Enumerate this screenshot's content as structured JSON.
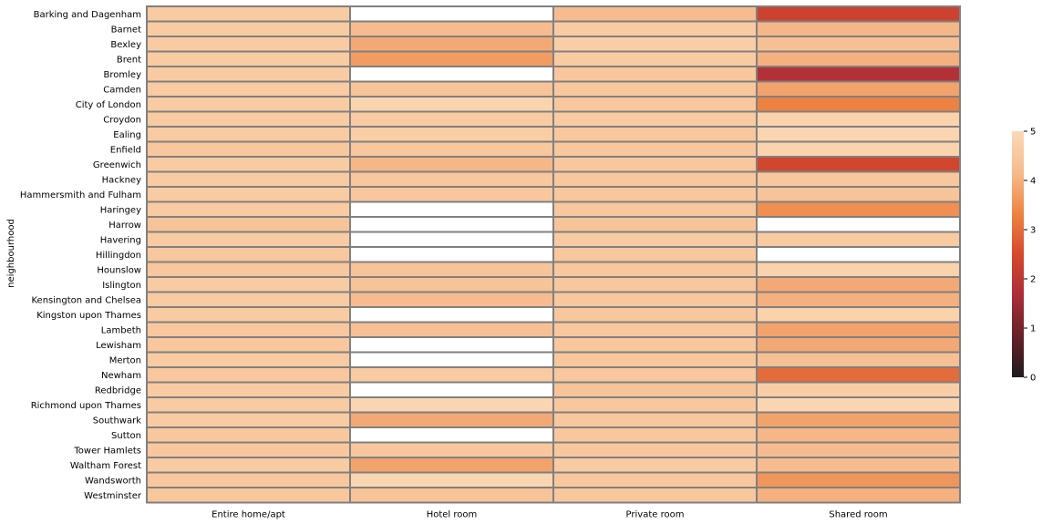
{
  "chart_data": {
    "type": "heatmap",
    "title": "",
    "xlabel": "",
    "ylabel": "neighbourhood",
    "columns": [
      "Entire home/apt",
      "Hotel room",
      "Private room",
      "Shared room"
    ],
    "rows": [
      "Barking and Dagenham",
      "Barnet",
      "Bexley",
      "Brent",
      "Bromley",
      "Camden",
      "City of London",
      "Croydon",
      "Ealing",
      "Enfield",
      "Greenwich",
      "Hackney",
      "Hammersmith and Fulham",
      "Haringey",
      "Harrow",
      "Havering",
      "Hillingdon",
      "Hounslow",
      "Islington",
      "Kensington and Chelsea",
      "Kingston upon Thames",
      "Lambeth",
      "Lewisham",
      "Merton",
      "Newham",
      "Redbridge",
      "Richmond upon Thames",
      "Southwark",
      "Sutton",
      "Tower Hamlets",
      "Waltham Forest",
      "Wandsworth",
      "Westminster"
    ],
    "values": [
      [
        4.6,
        null,
        4.2,
        2.3
      ],
      [
        4.6,
        4.2,
        4.6,
        4.1
      ],
      [
        4.6,
        3.9,
        4.7,
        4.3
      ],
      [
        4.6,
        3.7,
        4.6,
        4.0
      ],
      [
        4.6,
        null,
        4.5,
        1.8
      ],
      [
        4.6,
        4.4,
        4.5,
        3.8
      ],
      [
        4.6,
        4.85,
        4.5,
        3.3
      ],
      [
        4.6,
        4.6,
        4.6,
        4.8
      ],
      [
        4.6,
        4.7,
        4.5,
        4.9
      ],
      [
        4.5,
        4.5,
        4.5,
        4.85
      ],
      [
        4.6,
        4.1,
        4.5,
        2.4
      ],
      [
        4.6,
        4.5,
        4.5,
        4.5
      ],
      [
        4.6,
        4.5,
        4.5,
        4.4
      ],
      [
        4.6,
        null,
        4.5,
        3.5
      ],
      [
        4.4,
        null,
        4.4,
        null
      ],
      [
        4.6,
        null,
        4.6,
        4.6
      ],
      [
        4.5,
        null,
        4.5,
        null
      ],
      [
        4.5,
        4.4,
        4.5,
        4.8
      ],
      [
        4.6,
        4.4,
        4.5,
        3.9
      ],
      [
        4.6,
        4.2,
        4.5,
        4.0
      ],
      [
        4.6,
        null,
        4.5,
        4.8
      ],
      [
        4.5,
        4.3,
        4.5,
        3.8
      ],
      [
        4.5,
        null,
        4.5,
        3.9
      ],
      [
        4.6,
        null,
        4.5,
        4.3
      ],
      [
        4.5,
        4.6,
        4.5,
        3.0
      ],
      [
        4.6,
        null,
        4.4,
        4.7
      ],
      [
        4.6,
        4.9,
        4.5,
        4.9
      ],
      [
        4.6,
        3.9,
        4.5,
        3.8
      ],
      [
        4.5,
        null,
        4.5,
        4.1
      ],
      [
        4.5,
        4.5,
        4.5,
        4.2
      ],
      [
        4.6,
        3.8,
        4.6,
        4.2
      ],
      [
        4.5,
        4.9,
        4.5,
        3.6
      ],
      [
        4.5,
        4.4,
        4.5,
        4.0
      ]
    ],
    "colorbar": {
      "min": 0,
      "max": 5,
      "ticks": [
        "0",
        "1",
        "2",
        "3",
        "4",
        "5"
      ]
    },
    "colormap": [
      "#1e1c1d",
      "#652129",
      "#ab2d38",
      "#d6492d",
      "#ed8442",
      "#f6bb8d",
      "#fbd9b6"
    ]
  }
}
